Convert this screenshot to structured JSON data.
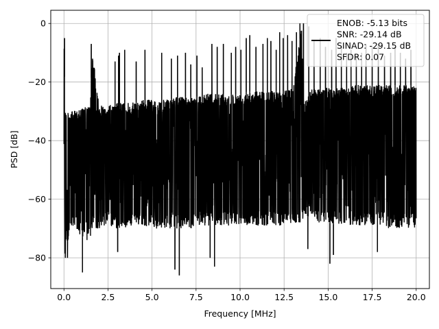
{
  "chart_data": {
    "type": "line",
    "title": "",
    "xlabel": "Frequency [MHz]",
    "ylabel": "PSD [dB]",
    "xlim": [
      -0.75,
      20.75
    ],
    "ylim": [
      -90.5,
      4.5
    ],
    "xticks": [
      0.0,
      2.5,
      5.0,
      7.5,
      10.0,
      12.5,
      15.0,
      17.5,
      20.0
    ],
    "xtick_labels": [
      "0.0",
      "2.5",
      "5.0",
      "7.5",
      "10.0",
      "12.5",
      "15.0",
      "17.5",
      "20.0"
    ],
    "yticks": [
      0,
      -20,
      -40,
      -60,
      -80
    ],
    "ytick_labels": [
      "0",
      "−20",
      "−40",
      "−60",
      "−80"
    ],
    "grid": true,
    "legend_position": "top-right",
    "line_color": "#000000",
    "series": [
      {
        "name": "ENOB: -5.13 bits\nSNR: -29.14 dB\nSINAD: -29.15 dB\nSFDR: 0.07",
        "envelope": {
          "x": [
            0.0,
            0.05,
            0.1,
            0.5,
            1.0,
            1.5,
            1.6,
            2.0,
            2.5,
            3.0,
            3.5,
            4.0,
            4.5,
            5.0,
            5.5,
            6.0,
            6.5,
            7.0,
            7.5,
            8.0,
            8.5,
            9.0,
            9.5,
            10.0,
            10.5,
            11.0,
            11.5,
            12.0,
            12.5,
            13.0,
            13.5,
            13.6,
            14.0,
            14.5,
            15.0,
            15.5,
            16.0,
            16.5,
            17.0,
            17.5,
            18.0,
            18.5,
            19.0,
            19.5,
            20.0
          ],
          "upper": [
            -5,
            -27,
            -30,
            -30,
            -29,
            -28,
            -9,
            -28,
            -28,
            -27,
            -27,
            -27,
            -26,
            -26,
            -26,
            -26,
            -25,
            -25,
            -25,
            -24,
            -24,
            -24,
            -24,
            -24,
            -23,
            -23,
            -23,
            -23,
            -23,
            -22,
            -1,
            -28,
            -22,
            -22,
            -22,
            -22,
            -22,
            -21,
            -21,
            -21,
            -21,
            -21,
            -21,
            -21,
            -21
          ],
          "lower": [
            -57,
            -80,
            -76,
            -70,
            -73,
            -75,
            -70,
            -70,
            -69,
            -70,
            -70,
            -69,
            -69,
            -70,
            -70,
            -70,
            -70,
            -70,
            -70,
            -69,
            -69,
            -69,
            -69,
            -69,
            -69,
            -69,
            -69,
            -69,
            -69,
            -68,
            -69,
            -66,
            -66,
            -68,
            -68,
            -69,
            -69,
            -69,
            -69,
            -69,
            -69,
            -70,
            -70,
            -70,
            -70
          ]
        },
        "spikes_up": [
          [
            0.03,
            -5
          ],
          [
            1.55,
            -7
          ],
          [
            2.9,
            -13
          ],
          [
            3.15,
            -10
          ],
          [
            3.45,
            -9
          ],
          [
            3.1,
            -11
          ],
          [
            4.1,
            -13
          ],
          [
            4.6,
            -9
          ],
          [
            5.55,
            -10
          ],
          [
            6.1,
            -12
          ],
          [
            6.45,
            -11
          ],
          [
            6.9,
            -10
          ],
          [
            7.2,
            -14
          ],
          [
            7.55,
            -11
          ],
          [
            7.85,
            -15
          ],
          [
            8.4,
            -7
          ],
          [
            8.7,
            -8
          ],
          [
            9.05,
            -7
          ],
          [
            9.5,
            -10
          ],
          [
            9.75,
            -8
          ],
          [
            10.05,
            -9
          ],
          [
            10.35,
            -5
          ],
          [
            10.55,
            -4
          ],
          [
            10.9,
            -8
          ],
          [
            11.3,
            -7
          ],
          [
            11.55,
            -5
          ],
          [
            11.75,
            -6
          ],
          [
            12.05,
            -9
          ],
          [
            12.25,
            -3
          ],
          [
            12.45,
            -5
          ],
          [
            12.7,
            -4
          ],
          [
            12.95,
            -6
          ],
          [
            13.2,
            -3
          ],
          [
            13.4,
            0
          ],
          [
            13.6,
            0
          ],
          [
            13.9,
            -1
          ],
          [
            14.2,
            -6
          ],
          [
            14.55,
            -5
          ],
          [
            14.85,
            -8
          ],
          [
            15.2,
            -9
          ],
          [
            15.45,
            -5
          ],
          [
            15.75,
            -8
          ],
          [
            16.05,
            -10
          ],
          [
            16.3,
            -9
          ],
          [
            16.6,
            -11
          ],
          [
            16.9,
            -10
          ],
          [
            17.15,
            -7
          ],
          [
            17.5,
            -8
          ],
          [
            17.85,
            -7
          ],
          [
            18.2,
            -11
          ],
          [
            18.55,
            -10
          ],
          [
            18.8,
            -8
          ],
          [
            19.1,
            -10
          ],
          [
            19.4,
            -12
          ],
          [
            19.7,
            -9
          ]
        ],
        "spikes_down": [
          [
            0.08,
            -80
          ],
          [
            0.2,
            -80
          ],
          [
            1.05,
            -85
          ],
          [
            3.05,
            -78
          ],
          [
            6.3,
            -84
          ],
          [
            6.55,
            -86
          ],
          [
            8.3,
            -80
          ],
          [
            8.55,
            -83
          ],
          [
            13.85,
            -77
          ],
          [
            15.1,
            -82
          ],
          [
            15.3,
            -79
          ],
          [
            17.8,
            -78
          ]
        ]
      }
    ]
  }
}
